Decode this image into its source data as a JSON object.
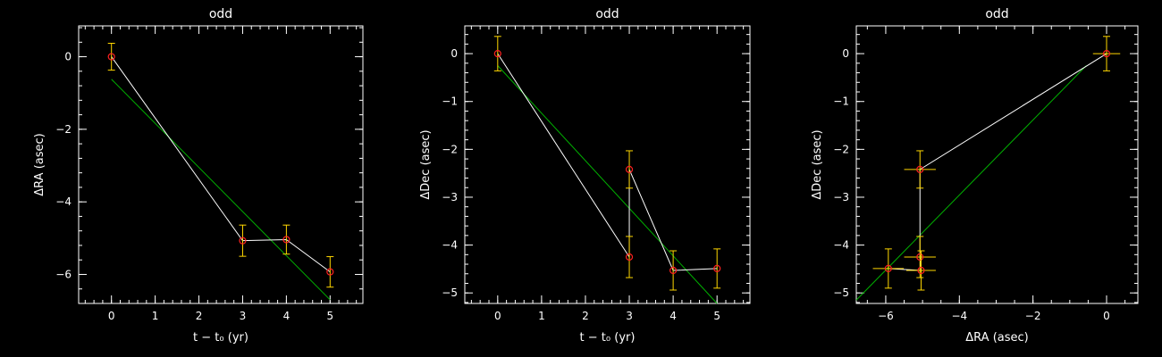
{
  "chart_data": [
    {
      "type": "scatter",
      "title": "odd",
      "xlabel": "t − t₀ (yr)",
      "ylabel": "ΔRA (asec)",
      "xlim": [
        -0.75,
        5.75
      ],
      "ylim": [
        -6.8,
        0.85
      ],
      "xticks": [
        0,
        1,
        2,
        3,
        4,
        5
      ],
      "yticks": [
        0,
        -2,
        -4,
        -6
      ],
      "ytick_labels": [
        "0",
        "−2",
        "−4",
        "−6"
      ],
      "points": [
        {
          "x": 0,
          "y": 0.0,
          "xerr": 0,
          "yerr": 0.37
        },
        {
          "x": 3,
          "y": -5.07,
          "xerr": 0,
          "yerr": 0.43
        },
        {
          "x": 4,
          "y": -5.04,
          "xerr": 0,
          "yerr": 0.4
        },
        {
          "x": 5,
          "y": -5.93,
          "xerr": 0,
          "yerr": 0.42
        }
      ],
      "fit": {
        "x": [
          0,
          5
        ],
        "y": [
          -0.62,
          -6.7
        ]
      },
      "colors": {
        "points": "#ff2020",
        "errors": "#ffd700",
        "path": "#ffffff",
        "fit": "#00b000"
      },
      "grid": false
    },
    {
      "type": "scatter",
      "title": "odd",
      "xlabel": "t − t₀ (yr)",
      "ylabel": "ΔDec (asec)",
      "xlim": [
        -0.75,
        5.75
      ],
      "ylim": [
        -5.22,
        0.58
      ],
      "xticks": [
        0,
        1,
        2,
        3,
        4,
        5
      ],
      "yticks": [
        0,
        -1,
        -2,
        -3,
        -4,
        -5
      ],
      "ytick_labels": [
        "0",
        "−1",
        "−2",
        "−3",
        "−4",
        "−5"
      ],
      "points": [
        {
          "x": 0,
          "y": 0.0,
          "xerr": 0,
          "yerr": 0.36
        },
        {
          "x": 3,
          "y": -4.25,
          "xerr": 0,
          "yerr": 0.43
        },
        {
          "x": 3,
          "y": -2.42,
          "xerr": 0,
          "yerr": 0.39
        },
        {
          "x": 4,
          "y": -4.53,
          "xerr": 0,
          "yerr": 0.41
        },
        {
          "x": 5,
          "y": -4.49,
          "xerr": 0,
          "yerr": 0.41
        }
      ],
      "fit": {
        "x": [
          0,
          5
        ],
        "y": [
          -0.25,
          -5.22
        ]
      },
      "colors": {
        "points": "#ff2020",
        "errors": "#ffd700",
        "path": "#ffffff",
        "fit": "#00b000"
      },
      "grid": false
    },
    {
      "type": "scatter",
      "title": "odd",
      "xlabel": "ΔRA (asec)",
      "ylabel": "ΔDec (asec)",
      "xlim": [
        -6.8,
        0.85
      ],
      "ylim": [
        -5.22,
        0.58
      ],
      "xticks": [
        -6,
        -4,
        -2,
        0
      ],
      "xtick_labels": [
        "−6",
        "−4",
        "−2",
        "0"
      ],
      "yticks": [
        0,
        -1,
        -2,
        -3,
        -4,
        -5
      ],
      "ytick_labels": [
        "0",
        "−1",
        "−2",
        "−3",
        "−4",
        "−5"
      ],
      "points": [
        {
          "x": 0.0,
          "y": 0.0,
          "xerr": 0.37,
          "yerr": 0.36
        },
        {
          "x": -5.07,
          "y": -4.25,
          "xerr": 0.43,
          "yerr": 0.43
        },
        {
          "x": -5.07,
          "y": -2.42,
          "xerr": 0.43,
          "yerr": 0.39
        },
        {
          "x": -5.04,
          "y": -4.53,
          "xerr": 0.4,
          "yerr": 0.41
        },
        {
          "x": -5.93,
          "y": -4.49,
          "xerr": 0.42,
          "yerr": 0.41
        }
      ],
      "path_order": [
        0,
        2,
        1,
        3,
        4
      ],
      "fit": {
        "x": [
          -6.8,
          -0.55
        ],
        "y": [
          -5.15,
          -0.25
        ]
      },
      "colors": {
        "points": "#ff2020",
        "errors": "#ffd700",
        "path": "#ffffff",
        "fit": "#00b000"
      },
      "grid": false
    }
  ]
}
